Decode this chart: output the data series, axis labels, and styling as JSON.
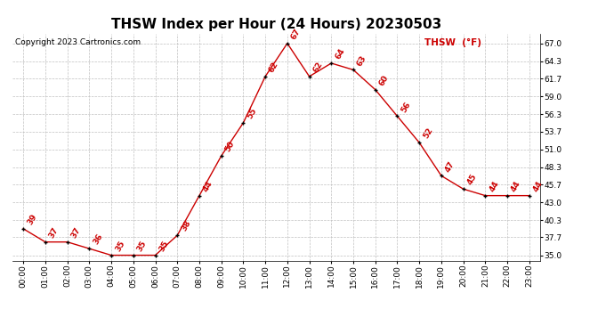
{
  "title": "THSW Index per Hour (24 Hours) 20230503",
  "copyright": "Copyright 2023 Cartronics.com",
  "legend_label": "THSW  (°F)",
  "hours": [
    "00:00",
    "01:00",
    "02:00",
    "03:00",
    "04:00",
    "05:00",
    "06:00",
    "07:00",
    "08:00",
    "09:00",
    "10:00",
    "11:00",
    "12:00",
    "13:00",
    "14:00",
    "15:00",
    "16:00",
    "17:00",
    "18:00",
    "19:00",
    "20:00",
    "21:00",
    "22:00",
    "23:00"
  ],
  "values": [
    39,
    37,
    37,
    36,
    35,
    35,
    35,
    38,
    44,
    50,
    55,
    62,
    67,
    62,
    64,
    63,
    60,
    56,
    52,
    47,
    45,
    44,
    44,
    44
  ],
  "y_ticks": [
    35.0,
    37.7,
    40.3,
    43.0,
    45.7,
    48.3,
    51.0,
    53.7,
    56.3,
    59.0,
    61.7,
    64.3,
    67.0
  ],
  "ylim": [
    34.2,
    68.5
  ],
  "xlim": [
    -0.5,
    23.5
  ],
  "line_color": "#cc0000",
  "marker_color": "#000000",
  "label_color": "#cc0000",
  "title_color": "#000000",
  "copyright_color": "#000000",
  "legend_color": "#cc0000",
  "bg_color": "#ffffff",
  "grid_color": "#c0c0c0",
  "title_fontsize": 11,
  "annotation_fontsize": 6.5,
  "tick_fontsize": 6.5,
  "copyright_fontsize": 6.5,
  "legend_fontsize": 7.5
}
